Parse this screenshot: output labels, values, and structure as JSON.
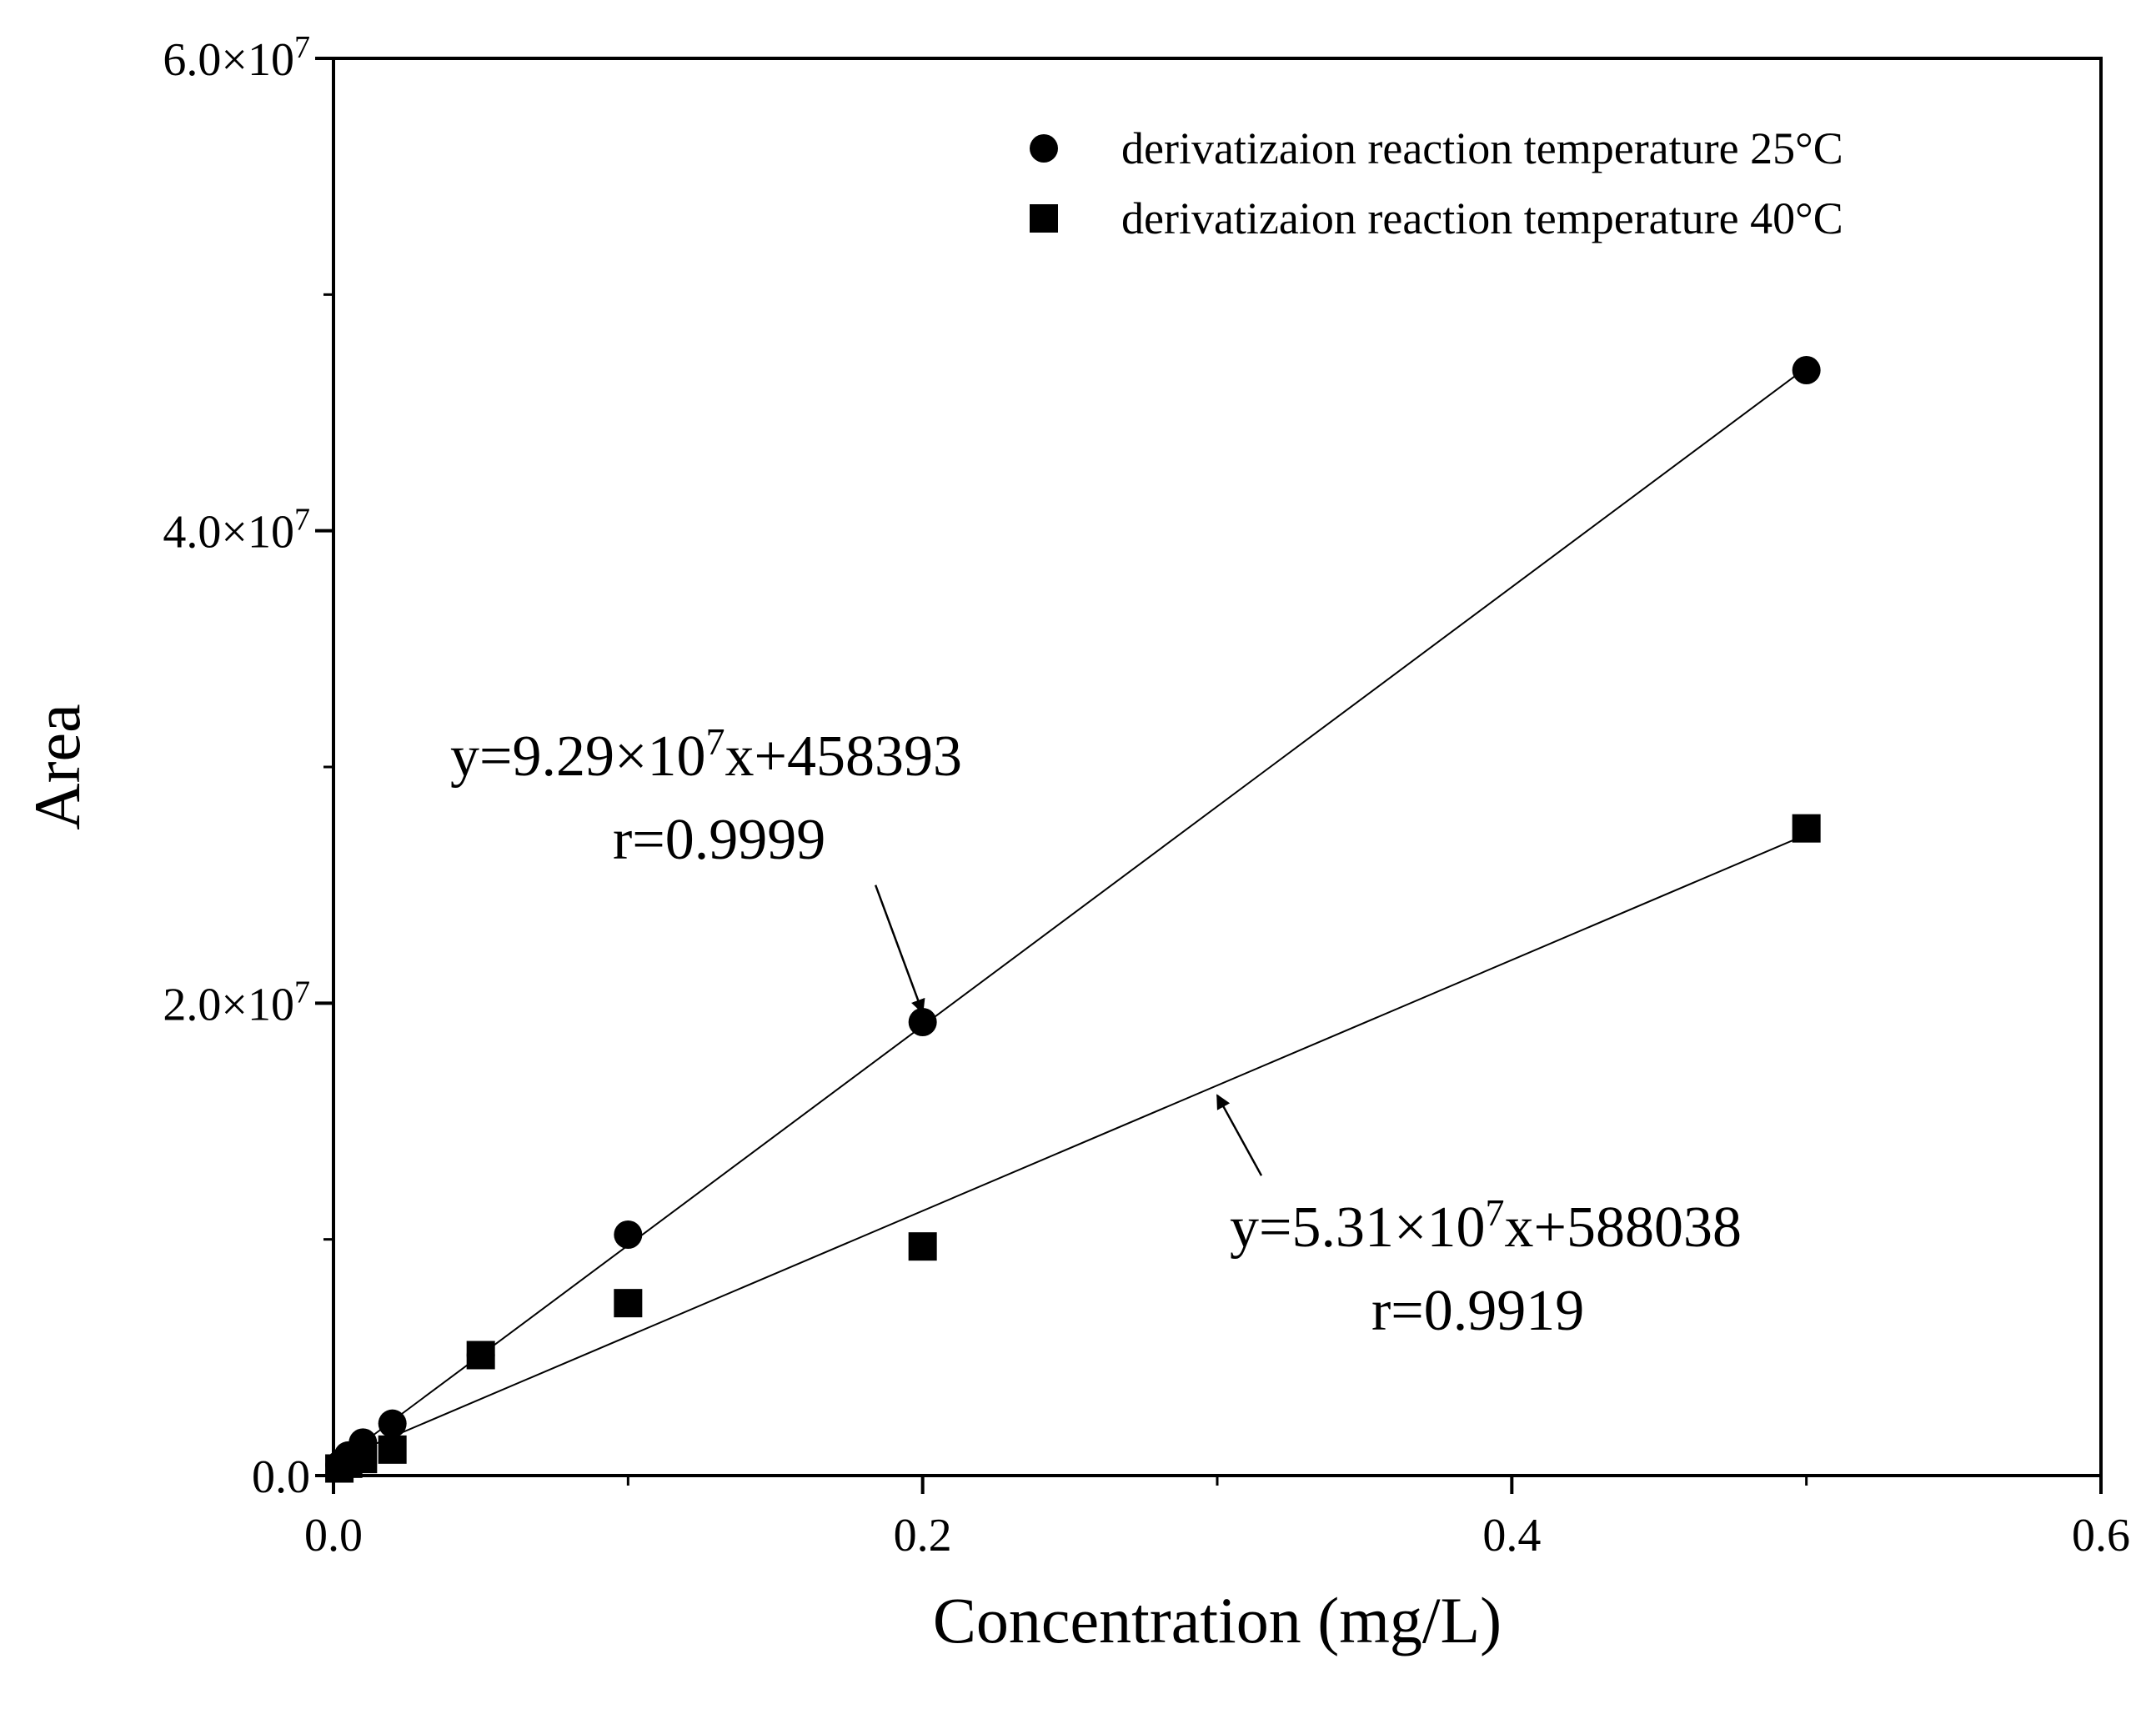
{
  "chart_data": {
    "type": "scatter",
    "title": "",
    "xlabel": "Concentration (mg/L)",
    "ylabel": "Area",
    "xlim": [
      0.0,
      0.6
    ],
    "ylim": [
      0,
      60000000
    ],
    "x_ticks": [
      {
        "value": 0.0,
        "label": "0.0"
      },
      {
        "value": 0.2,
        "label": "0.2"
      },
      {
        "value": 0.4,
        "label": "0.4"
      },
      {
        "value": 0.6,
        "label": "0.6"
      }
    ],
    "y_ticks": [
      {
        "value": 0,
        "mantissa": "0.0",
        "exponent": ""
      },
      {
        "value": 20000000,
        "mantissa": "2.0×10",
        "exponent": "7"
      },
      {
        "value": 40000000,
        "mantissa": "4.0×10",
        "exponent": "7"
      },
      {
        "value": 60000000,
        "mantissa": "6.0×10",
        "exponent": "7"
      }
    ],
    "grid": false,
    "legend_position": "top-right",
    "series": [
      {
        "name": "derivatizaion reaction temperature 25°C",
        "marker": "circle",
        "color": "#000000",
        "x": [
          0.002,
          0.005,
          0.01,
          0.02,
          0.05,
          0.1,
          0.2,
          0.5
        ],
        "y": [
          450000,
          850000,
          1400000,
          2200000,
          5100000,
          10200000,
          19200000,
          46800000
        ],
        "fit": {
          "slope": 92900000,
          "intercept": 458393,
          "x_range": [
            0.002,
            0.5
          ]
        }
      },
      {
        "name": "derivatizaion reaction temperature 40°C",
        "marker": "square",
        "color": "#000000",
        "x": [
          0.002,
          0.005,
          0.01,
          0.02,
          0.05,
          0.1,
          0.2,
          0.5
        ],
        "y": [
          300000,
          500000,
          700000,
          1100000,
          5100000,
          7300000,
          9700000,
          27400000
        ],
        "fit": {
          "slope": 53100000,
          "intercept": 588038,
          "x_range": [
            0.002,
            0.5
          ]
        }
      }
    ],
    "annotations": [
      {
        "series": 0,
        "equation": {
          "prefix": "y=9.29×10",
          "exponent": "7",
          "suffix": "x+458393"
        },
        "r_text": "r=0.9999",
        "arrow_from": [
          0.184,
          25000000
        ],
        "arrow_to": [
          0.2,
          19600000
        ]
      },
      {
        "series": 1,
        "equation": {
          "prefix": "y=5.31×10",
          "exponent": "7",
          "suffix": "x+588038"
        },
        "r_text": "r=0.9919",
        "arrow_from": [
          0.315,
          12700000
        ],
        "arrow_to": [
          0.3,
          16100000
        ]
      }
    ]
  }
}
